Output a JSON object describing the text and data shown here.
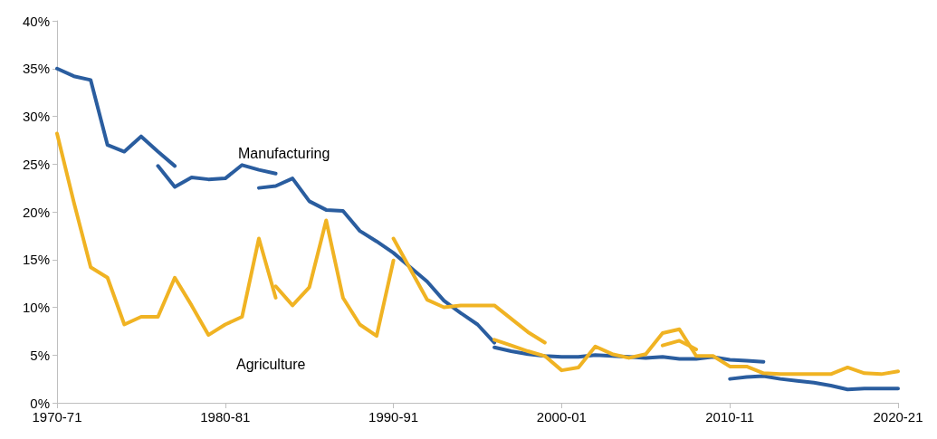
{
  "chart_data": {
    "type": "line",
    "categories": [
      "1970-71",
      null,
      null,
      null,
      null,
      null,
      null,
      null,
      null,
      null,
      "1980-81",
      null,
      null,
      null,
      null,
      null,
      null,
      null,
      null,
      null,
      "1990-91",
      null,
      null,
      null,
      null,
      null,
      null,
      null,
      null,
      null,
      "2000-01",
      null,
      null,
      null,
      null,
      null,
      null,
      null,
      null,
      null,
      "2010-11",
      null,
      null,
      null,
      null,
      null,
      null,
      null,
      null,
      null,
      "2020-21"
    ],
    "series": [
      {
        "color": "#2a5d9f",
        "values": [
          35,
          34.2,
          33.8,
          27,
          26.3,
          27.9,
          26.3,
          24.8,
          null,
          null,
          null,
          null,
          null,
          null,
          null,
          null,
          null,
          null,
          null,
          null,
          null,
          null,
          null,
          null,
          null,
          null,
          null,
          null,
          null,
          null,
          null,
          null,
          null,
          null,
          null,
          null,
          null,
          null,
          null,
          null,
          null,
          null,
          null,
          null,
          null,
          null,
          null,
          null,
          null,
          null,
          null
        ]
      },
      {
        "color": "#2a5d9f",
        "values": [
          null,
          null,
          null,
          null,
          null,
          null,
          24.8,
          22.6,
          23.6,
          23.4,
          23.5,
          24.9,
          24.4,
          24.0,
          null,
          null,
          null,
          null,
          null,
          null,
          null,
          null,
          null,
          null,
          null,
          null,
          null,
          null,
          null,
          null,
          null,
          null,
          null,
          null,
          null,
          null,
          null,
          null,
          null,
          null,
          null,
          null,
          null,
          null,
          null,
          null,
          null,
          null,
          null,
          null,
          null
        ]
      },
      {
        "color": "#2a5d9f",
        "values": [
          null,
          null,
          null,
          null,
          null,
          null,
          null,
          null,
          null,
          null,
          null,
          null,
          22.5,
          22.7,
          23.5,
          21.1,
          20.2,
          20.1,
          18.0,
          16.9,
          15.7,
          14.2,
          12.7,
          10.7,
          9.4,
          8.2,
          6.3,
          null,
          null,
          null,
          null,
          null,
          null,
          null,
          null,
          null,
          null,
          null,
          null,
          null,
          null,
          null,
          null,
          null,
          null,
          null,
          null,
          null,
          null,
          null,
          null
        ]
      },
      {
        "color": "#2a5d9f",
        "values": [
          null,
          null,
          null,
          null,
          null,
          null,
          null,
          null,
          null,
          null,
          null,
          null,
          null,
          null,
          null,
          null,
          null,
          null,
          null,
          null,
          null,
          null,
          null,
          null,
          null,
          null,
          5.8,
          5.4,
          5.1,
          4.9,
          4.8,
          4.8,
          5.0,
          4.9,
          4.8,
          4.7,
          4.8,
          4.6,
          4.6,
          4.8,
          4.5,
          4.4,
          4.3,
          null,
          null,
          null,
          null,
          null,
          null,
          null,
          null
        ]
      },
      {
        "color": "#2a5d9f",
        "values": [
          null,
          null,
          null,
          null,
          null,
          null,
          null,
          null,
          null,
          null,
          null,
          null,
          null,
          null,
          null,
          null,
          null,
          null,
          null,
          null,
          null,
          null,
          null,
          null,
          null,
          null,
          null,
          null,
          null,
          null,
          null,
          null,
          null,
          null,
          null,
          null,
          null,
          null,
          null,
          null,
          2.5,
          2.7,
          2.8,
          2.5,
          2.3,
          2.1,
          1.8,
          1.4,
          1.5,
          1.5,
          1.5
        ]
      },
      {
        "color": "#f0b323",
        "values": [
          28.2,
          21,
          14.2,
          13.1,
          8.2,
          9,
          9,
          13.1,
          10.2,
          7.1,
          8.2,
          9,
          17.2,
          11,
          null,
          null,
          null,
          null,
          null,
          null,
          null,
          null,
          null,
          null,
          null,
          null,
          null,
          null,
          null,
          null,
          null,
          null,
          null,
          null,
          null,
          null,
          null,
          null,
          null,
          null,
          null,
          null,
          null,
          null,
          null,
          null,
          null,
          null,
          null,
          null,
          null
        ]
      },
      {
        "color": "#f0b323",
        "values": [
          null,
          null,
          null,
          null,
          null,
          null,
          null,
          null,
          null,
          null,
          null,
          null,
          null,
          12.2,
          10.2,
          12.1,
          19.1,
          11,
          8.2,
          7,
          14.9,
          null,
          null,
          null,
          null,
          null,
          null,
          null,
          null,
          null,
          null,
          null,
          null,
          null,
          null,
          null,
          null,
          null,
          null,
          null,
          null,
          null,
          null,
          null,
          null,
          null,
          null,
          null,
          null,
          null,
          null
        ]
      },
      {
        "color": "#f0b323",
        "values": [
          null,
          null,
          null,
          null,
          null,
          null,
          null,
          null,
          null,
          null,
          null,
          null,
          null,
          null,
          null,
          null,
          null,
          null,
          null,
          null,
          17.2,
          14,
          10.8,
          10,
          10.2,
          10.2,
          10.2,
          8.8,
          7.4,
          6.3,
          null,
          null,
          null,
          null,
          null,
          null,
          null,
          null,
          null,
          null,
          null,
          null,
          null,
          null,
          null,
          null,
          null,
          null,
          null,
          null,
          null
        ]
      },
      {
        "color": "#f0b323",
        "values": [
          null,
          null,
          null,
          null,
          null,
          null,
          null,
          null,
          null,
          null,
          null,
          null,
          null,
          null,
          null,
          null,
          null,
          null,
          null,
          null,
          null,
          null,
          null,
          null,
          null,
          null,
          6.6,
          6,
          5.4,
          4.9,
          3.4,
          3.7,
          5.9,
          5.1,
          4.7,
          5.1,
          7.3,
          7.7,
          4.9,
          4.9,
          3.8,
          3.8,
          3.1,
          3,
          3,
          3,
          3,
          3.7,
          3.1,
          3,
          3.3
        ]
      },
      {
        "color": "#f0b323",
        "values": [
          null,
          null,
          null,
          null,
          null,
          null,
          null,
          null,
          null,
          null,
          null,
          null,
          null,
          null,
          null,
          null,
          null,
          null,
          null,
          null,
          null,
          null,
          null,
          null,
          null,
          null,
          null,
          null,
          null,
          null,
          null,
          null,
          null,
          null,
          null,
          null,
          6,
          6.5,
          5.6,
          null,
          null,
          null,
          null,
          null,
          null,
          null,
          null,
          null,
          null,
          null,
          null
        ]
      }
    ],
    "annotations": [
      "Manufacturing",
      "Agriculture"
    ],
    "ylim": [
      0,
      40
    ],
    "yticks": [
      {
        "value": 0,
        "label": "0%"
      },
      {
        "value": 5,
        "label": "5%"
      },
      {
        "value": 10,
        "label": "10%"
      },
      {
        "value": 15,
        "label": "15%"
      },
      {
        "value": 20,
        "label": "20%"
      },
      {
        "value": 25,
        "label": "25%"
      },
      {
        "value": 30,
        "label": "30%"
      },
      {
        "value": 35,
        "label": "35%"
      },
      {
        "value": 40,
        "label": "40%"
      }
    ],
    "grid": false,
    "marker": "none",
    "line_style": "solid"
  }
}
